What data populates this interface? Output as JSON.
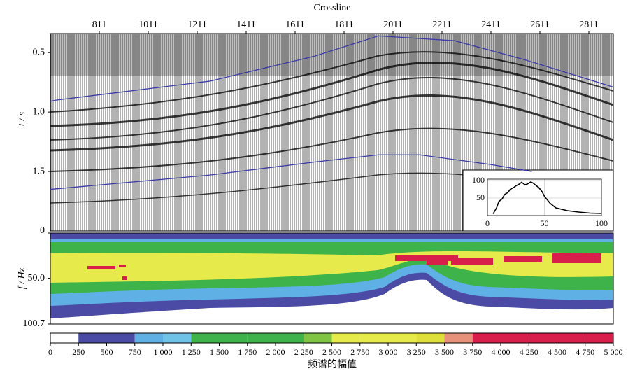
{
  "chart_data": [
    {
      "type": "seismic",
      "x_label": "Crossline",
      "y_label": "t / s",
      "xlim": [
        611,
        2911
      ],
      "xticks": [
        811,
        1011,
        1211,
        1411,
        1611,
        1811,
        2011,
        2211,
        2411,
        2611,
        2811
      ],
      "ylim": [
        0.34,
        2.0
      ],
      "yticks": [
        0.5,
        {
          "value": 1.0,
          "label": "1.0"
        },
        1.5
      ],
      "horizons": [
        {
          "color": "#3b3ba6",
          "x": [
            611,
            634,
            1263,
            1691,
            1951,
            2263,
            2549,
            2911
          ],
          "values": [
            0.91,
            0.9,
            0.74,
            0.53,
            0.36,
            0.4,
            0.56,
            0.79
          ]
        },
        {
          "color": "#3b3ba6",
          "x": [
            611,
            1263,
            1691,
            1951,
            2120,
            2406,
            2578
          ],
          "values": [
            1.65,
            1.53,
            1.42,
            1.36,
            1.36,
            1.44,
            1.5
          ]
        }
      ]
    },
    {
      "type": "spectrum_map",
      "y_label": "f / Hz",
      "ylim": [
        0,
        100.7
      ],
      "yticks": [
        0,
        {
          "value": 50,
          "label": "50.0"
        },
        100.7
      ]
    },
    {
      "type": "colorbar",
      "label": "频谱的幅值",
      "xlim": [
        0,
        5000
      ],
      "bins": [
        0,
        250,
        500,
        750,
        1000,
        1250,
        1500,
        1750,
        2000,
        2250,
        2500,
        2750,
        3000,
        3250,
        3500,
        3750,
        4000,
        4250,
        4500,
        4750,
        5000
      ],
      "colors": [
        "#ffffff",
        "#4b4aa5",
        "#4b4aa5",
        "#5fb0e4",
        "#6fc3e6",
        "#3db34a",
        "#3db34a",
        "#3db34a",
        "#3db34a",
        "#7fc442",
        "#e6ea4a",
        "#e6ea4a",
        "#e6ea4a",
        "#dede3c",
        "#e8917a",
        "#d81e4a",
        "#d81e4a",
        "#d81e4a",
        "#d81e4a",
        "#d81e4a"
      ],
      "xticks": [
        0,
        250,
        500,
        750,
        {
          "value": 1000,
          "label": "1 000"
        },
        {
          "value": 1250,
          "label": "1 250"
        },
        {
          "value": 1500,
          "label": "1 500"
        },
        {
          "value": 1750,
          "label": "1 750"
        },
        {
          "value": 2000,
          "label": "2 000"
        },
        {
          "value": 2250,
          "label": "2 250"
        },
        {
          "value": 2500,
          "label": "2 500"
        },
        {
          "value": 2750,
          "label": "2 750"
        },
        {
          "value": 3000,
          "label": "3 000"
        },
        {
          "value": 3250,
          "label": "3 250"
        },
        {
          "value": 3500,
          "label": "3 500"
        },
        {
          "value": 3750,
          "label": "3 750"
        },
        {
          "value": 4000,
          "label": "4 000"
        },
        {
          "value": 4250,
          "label": "4 250"
        },
        {
          "value": 4500,
          "label": "4 500"
        },
        {
          "value": 4750,
          "label": "4 750"
        },
        {
          "value": 5000,
          "label": "5 000"
        }
      ]
    },
    {
      "type": "line",
      "color": "#000000",
      "grid": true,
      "xlim": [
        0,
        100
      ],
      "xticks": [
        0,
        50,
        100
      ],
      "ylim": [
        0,
        104
      ],
      "yticks": [
        50,
        100
      ],
      "x": [
        5,
        8,
        10,
        13,
        15,
        18,
        20,
        23,
        25,
        28,
        30,
        33,
        35,
        38,
        40,
        43,
        45,
        48,
        50,
        55,
        60,
        65,
        70,
        80,
        90,
        100
      ],
      "values": [
        5,
        22,
        40,
        48,
        60,
        66,
        75,
        80,
        85,
        90,
        95,
        88,
        90,
        96,
        93,
        85,
        80,
        68,
        55,
        35,
        22,
        18,
        14,
        10,
        7,
        6
      ]
    }
  ]
}
